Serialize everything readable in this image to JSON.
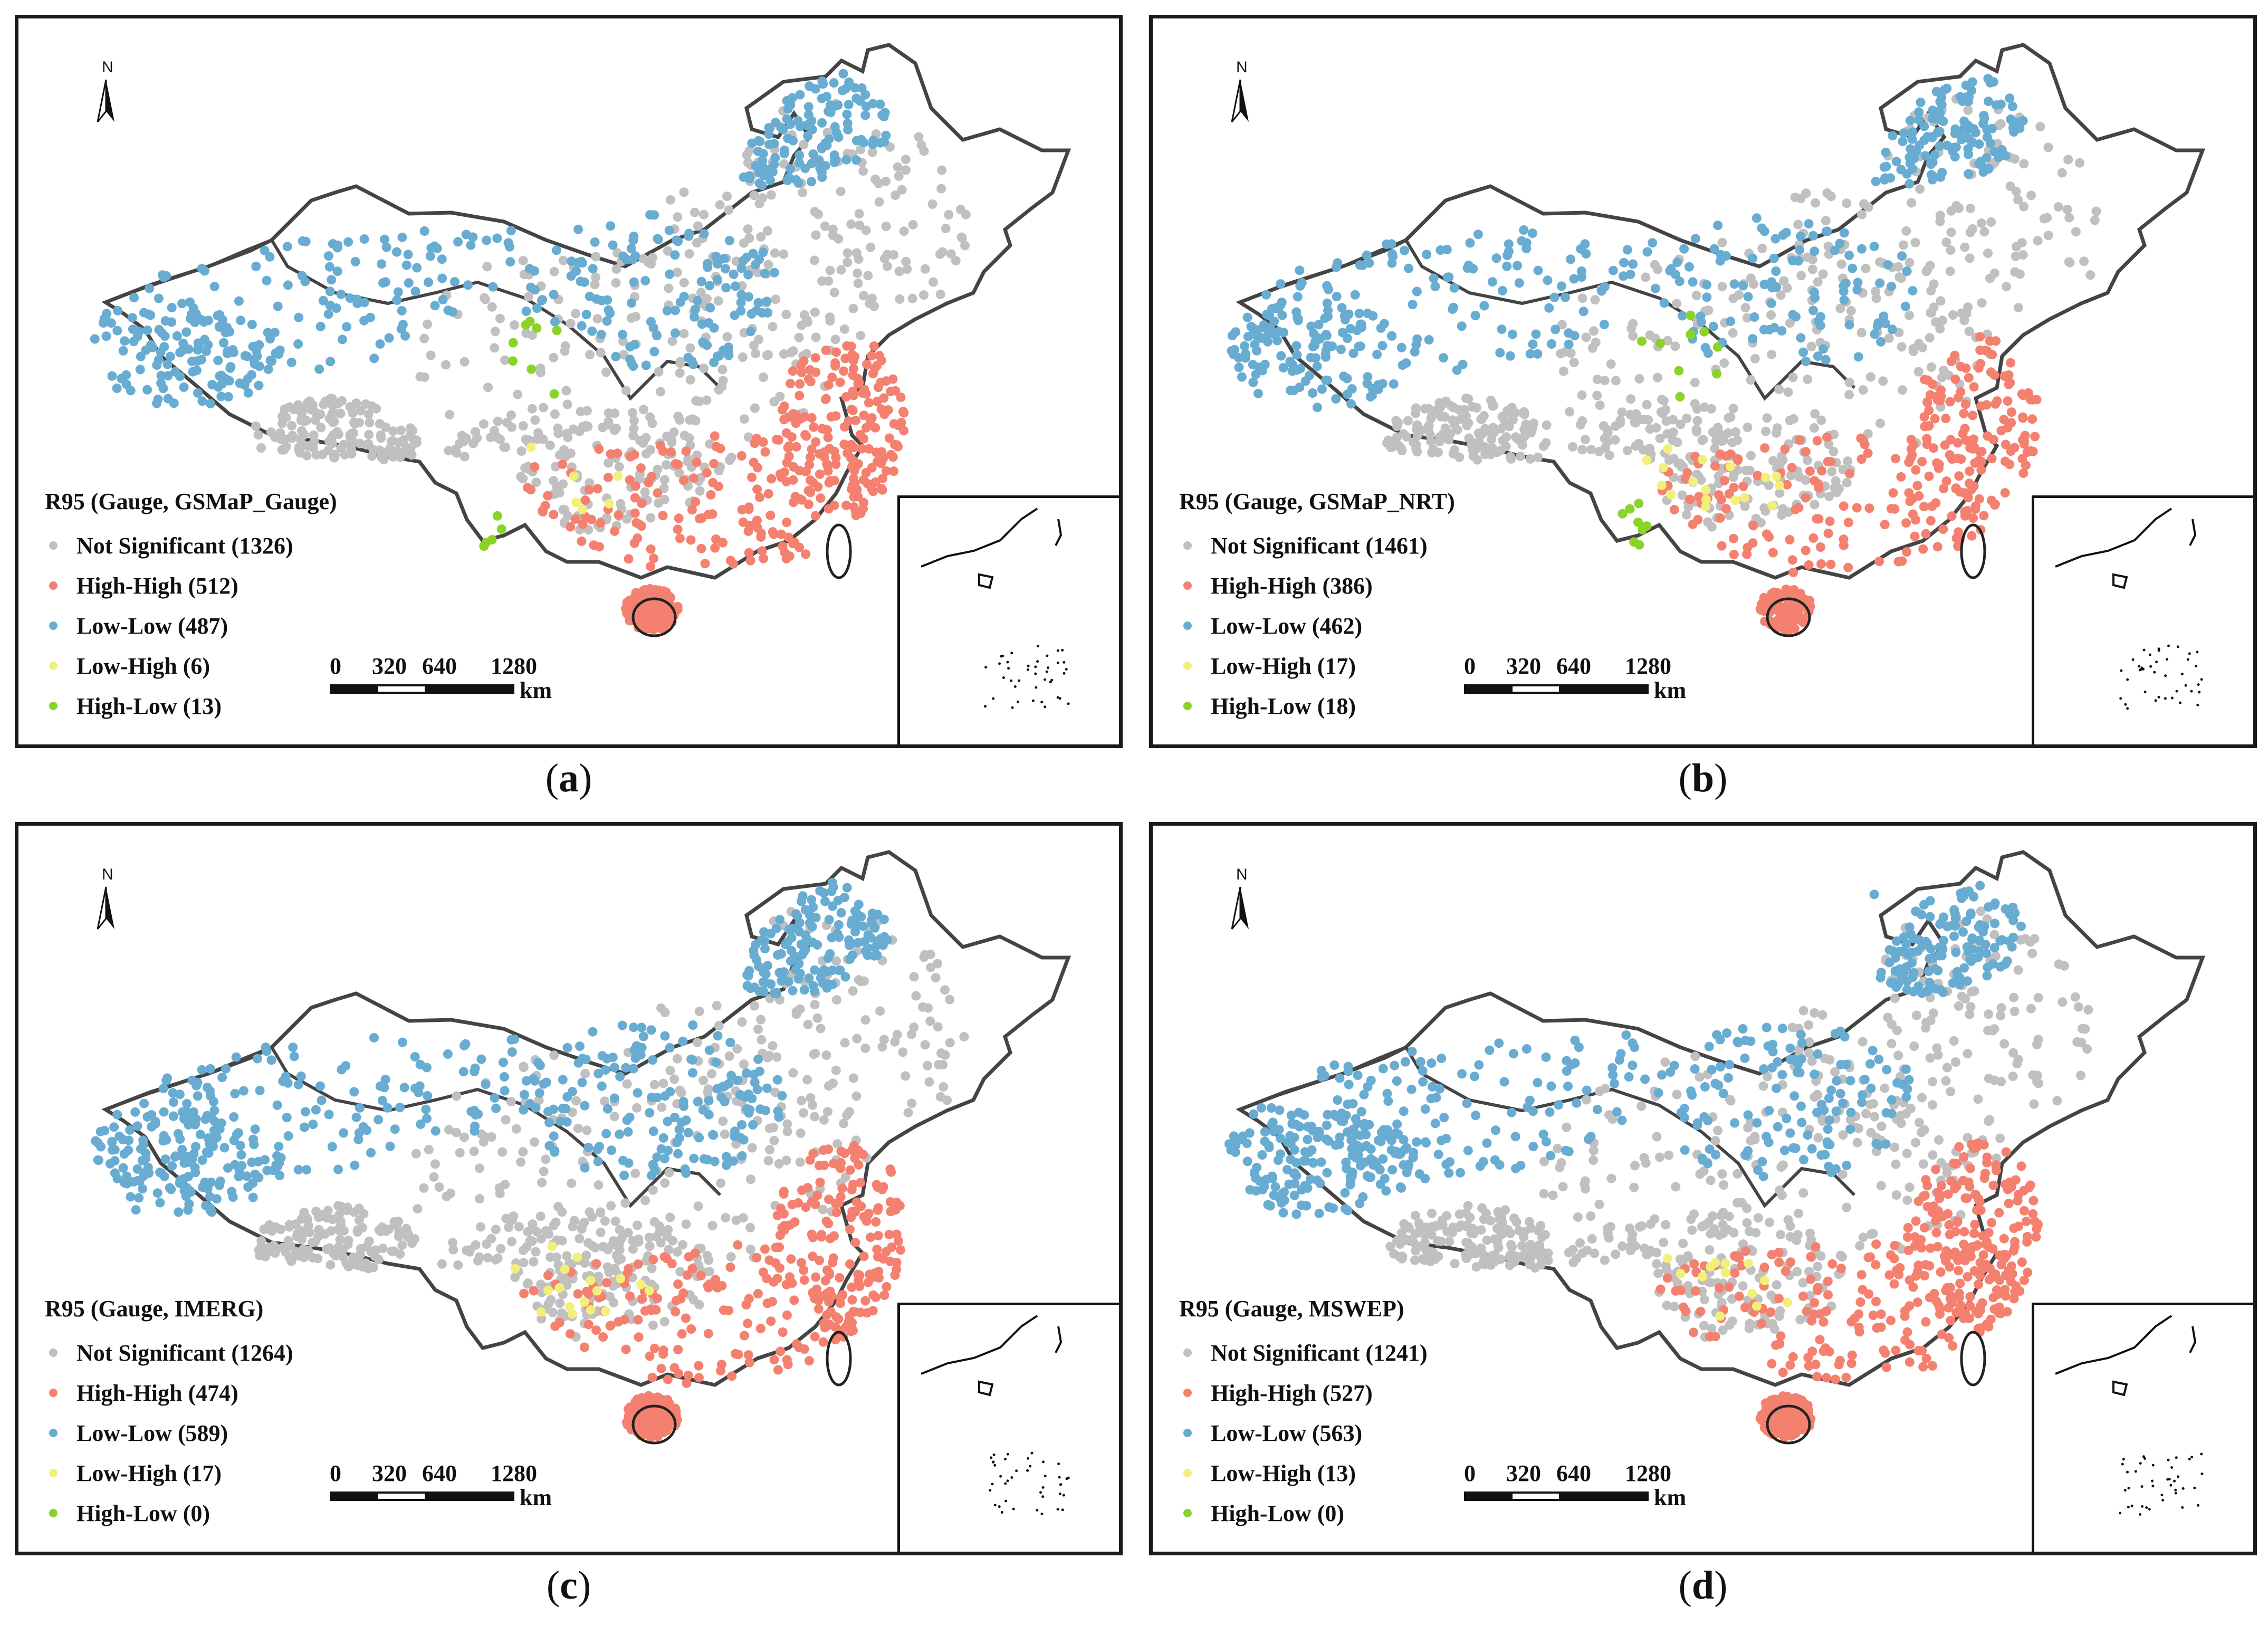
{
  "legend_colors": {
    "not_significant": "#c0c0c0",
    "high_high": "#f4806f",
    "low_low": "#68acd2",
    "low_high": "#f2f07a",
    "high_low": "#8ad42a"
  },
  "north_label": "N",
  "scale": {
    "labels": [
      "0",
      "320",
      "640",
      "1280"
    ],
    "unit": "km"
  },
  "panels": [
    {
      "caption_letter": "a",
      "legend_title": "R95 (Gauge, GSMaP_Gauge)",
      "items": [
        {
          "label": "Not Significant (1326)",
          "category": "not_significant",
          "count": 1326
        },
        {
          "label": "High-High (512)",
          "category": "high_high",
          "count": 512
        },
        {
          "label": "Low-Low (487)",
          "category": "low_low",
          "count": 487
        },
        {
          "label": "Low-High (6)",
          "category": "low_high",
          "count": 6
        },
        {
          "label": "High-Low (13)",
          "category": "high_low",
          "count": 13
        }
      ]
    },
    {
      "caption_letter": "b",
      "legend_title": "R95 (Gauge, GSMaP_NRT)",
      "items": [
        {
          "label": "Not Significant (1461)",
          "category": "not_significant",
          "count": 1461
        },
        {
          "label": "High-High (386)",
          "category": "high_high",
          "count": 386
        },
        {
          "label": "Low-Low (462)",
          "category": "low_low",
          "count": 462
        },
        {
          "label": "Low-High (17)",
          "category": "low_high",
          "count": 17
        },
        {
          "label": "High-Low (18)",
          "category": "high_low",
          "count": 18
        }
      ]
    },
    {
      "caption_letter": "c",
      "legend_title": "R95 (Gauge, IMERG)",
      "items": [
        {
          "label": "Not Significant (1264)",
          "category": "not_significant",
          "count": 1264
        },
        {
          "label": "High-High (474)",
          "category": "high_high",
          "count": 474
        },
        {
          "label": "Low-Low (589)",
          "category": "low_low",
          "count": 589
        },
        {
          "label": "Low-High (17)",
          "category": "low_high",
          "count": 17
        },
        {
          "label": "High-Low (0)",
          "category": "high_low",
          "count": 0
        }
      ]
    },
    {
      "caption_letter": "d",
      "legend_title": "R95 (Gauge, MSWEP)",
      "items": [
        {
          "label": "Not Significant (1241)",
          "category": "not_significant",
          "count": 1241
        },
        {
          "label": "High-High (527)",
          "category": "high_high",
          "count": 527
        },
        {
          "label": "Low-Low (563)",
          "category": "low_low",
          "count": 563
        },
        {
          "label": "Low-High (13)",
          "category": "low_high",
          "count": 13
        },
        {
          "label": "High-Low (0)",
          "category": "high_low",
          "count": 0
        }
      ]
    }
  ]
}
